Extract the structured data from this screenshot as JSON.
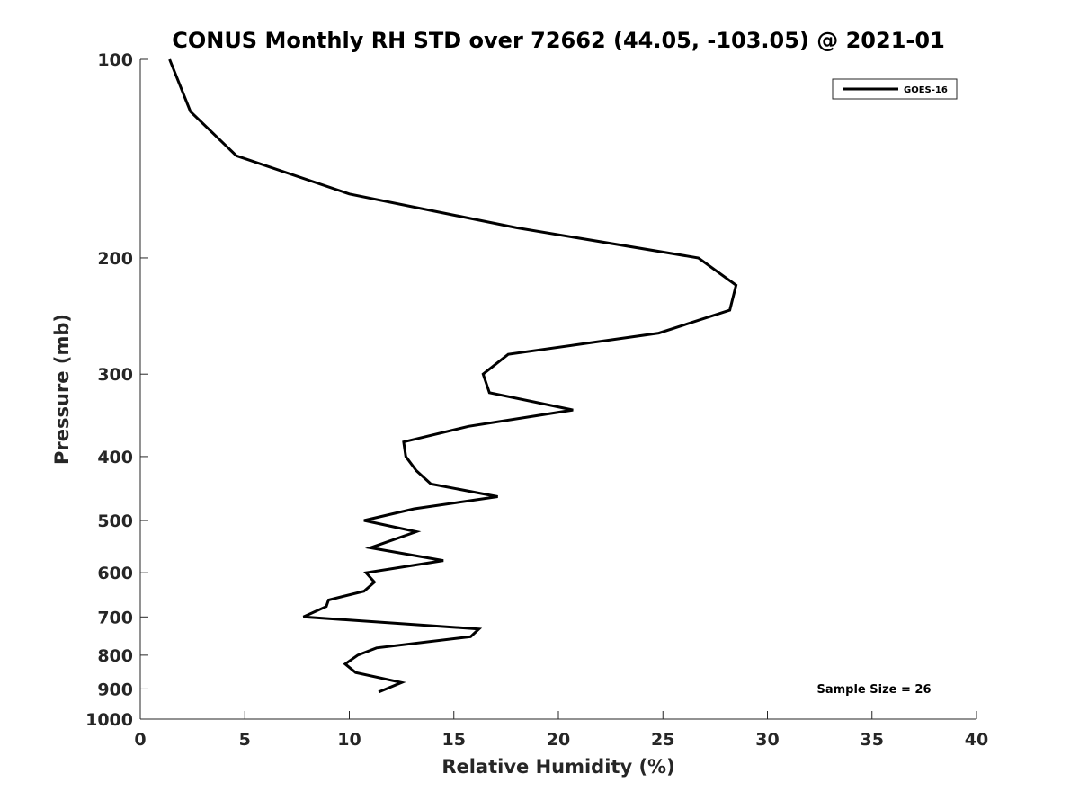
{
  "chart_data": {
    "type": "line",
    "title": "CONUS Monthly RH STD over 72662 (44.05, -103.05) @ 2021-01",
    "xlabel": "Relative Humidity (%)",
    "ylabel": "Pressure (mb)",
    "xlim": [
      0,
      40
    ],
    "ylim": [
      100,
      1000
    ],
    "yscale": "log",
    "y_reversed": true,
    "xticks": [
      0,
      5,
      10,
      15,
      20,
      25,
      30,
      35,
      40
    ],
    "yticks": [
      100,
      200,
      300,
      400,
      500,
      600,
      700,
      800,
      900,
      1000
    ],
    "legend_position": "top-right",
    "grid": false,
    "annotation": "Sample Size = 26",
    "series": [
      {
        "name": "GOES-16",
        "color": "#000000",
        "points": [
          {
            "x": 1.4,
            "y": 100
          },
          {
            "x": 2.4,
            "y": 120
          },
          {
            "x": 4.6,
            "y": 140
          },
          {
            "x": 10.0,
            "y": 160
          },
          {
            "x": 18.0,
            "y": 180
          },
          {
            "x": 26.7,
            "y": 200
          },
          {
            "x": 28.5,
            "y": 220
          },
          {
            "x": 28.2,
            "y": 240
          },
          {
            "x": 24.8,
            "y": 260
          },
          {
            "x": 17.6,
            "y": 280
          },
          {
            "x": 16.4,
            "y": 300
          },
          {
            "x": 16.7,
            "y": 320
          },
          {
            "x": 20.7,
            "y": 340
          },
          {
            "x": 15.7,
            "y": 360
          },
          {
            "x": 12.6,
            "y": 380
          },
          {
            "x": 12.7,
            "y": 400
          },
          {
            "x": 13.2,
            "y": 420
          },
          {
            "x": 13.9,
            "y": 440
          },
          {
            "x": 17.1,
            "y": 460
          },
          {
            "x": 13.1,
            "y": 480
          },
          {
            "x": 10.7,
            "y": 500
          },
          {
            "x": 13.2,
            "y": 520
          },
          {
            "x": 11.0,
            "y": 550
          },
          {
            "x": 14.5,
            "y": 575
          },
          {
            "x": 10.8,
            "y": 600
          },
          {
            "x": 11.2,
            "y": 620
          },
          {
            "x": 10.7,
            "y": 640
          },
          {
            "x": 9.0,
            "y": 660
          },
          {
            "x": 8.9,
            "y": 675
          },
          {
            "x": 7.8,
            "y": 700
          },
          {
            "x": 16.2,
            "y": 730
          },
          {
            "x": 15.8,
            "y": 750
          },
          {
            "x": 11.3,
            "y": 780
          },
          {
            "x": 10.4,
            "y": 800
          },
          {
            "x": 9.8,
            "y": 825
          },
          {
            "x": 10.3,
            "y": 850
          },
          {
            "x": 12.5,
            "y": 880
          },
          {
            "x": 11.4,
            "y": 910
          }
        ]
      }
    ]
  }
}
